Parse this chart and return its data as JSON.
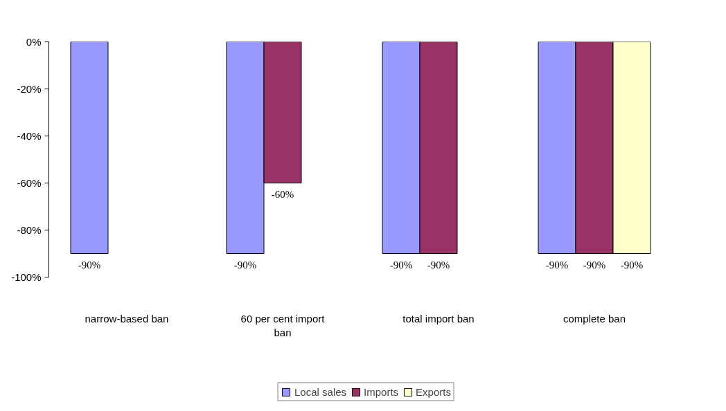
{
  "chart_data": {
    "type": "bar",
    "categories": [
      "narrow-based ban",
      "60 per cent import ban",
      "total import ban",
      "complete ban"
    ],
    "series": [
      {
        "name": "Local sales",
        "color": "#9999ff",
        "values": [
          -90,
          -90,
          -90,
          -90
        ],
        "value_labels": [
          "-90%",
          "-90%",
          "-90%",
          "-90%"
        ]
      },
      {
        "name": "Imports",
        "color": "#993366",
        "values": [
          null,
          -60,
          -90,
          -90
        ],
        "value_labels": [
          null,
          "-60%",
          "-90%",
          "-90%"
        ]
      },
      {
        "name": "Exports",
        "color": "#ffffcc",
        "values": [
          null,
          null,
          null,
          -90
        ],
        "value_labels": [
          null,
          null,
          null,
          "-90%"
        ]
      }
    ],
    "ylim": [
      -100,
      0
    ],
    "yticks": [
      {
        "value": 0,
        "label": "0%"
      },
      {
        "value": -20,
        "label": "-20%"
      },
      {
        "value": -40,
        "label": "-40%"
      },
      {
        "value": -60,
        "label": "-60%"
      },
      {
        "value": -80,
        "label": "-80%"
      },
      {
        "value": -100,
        "label": "-100%"
      }
    ],
    "grid": false,
    "legend": "bottom"
  }
}
